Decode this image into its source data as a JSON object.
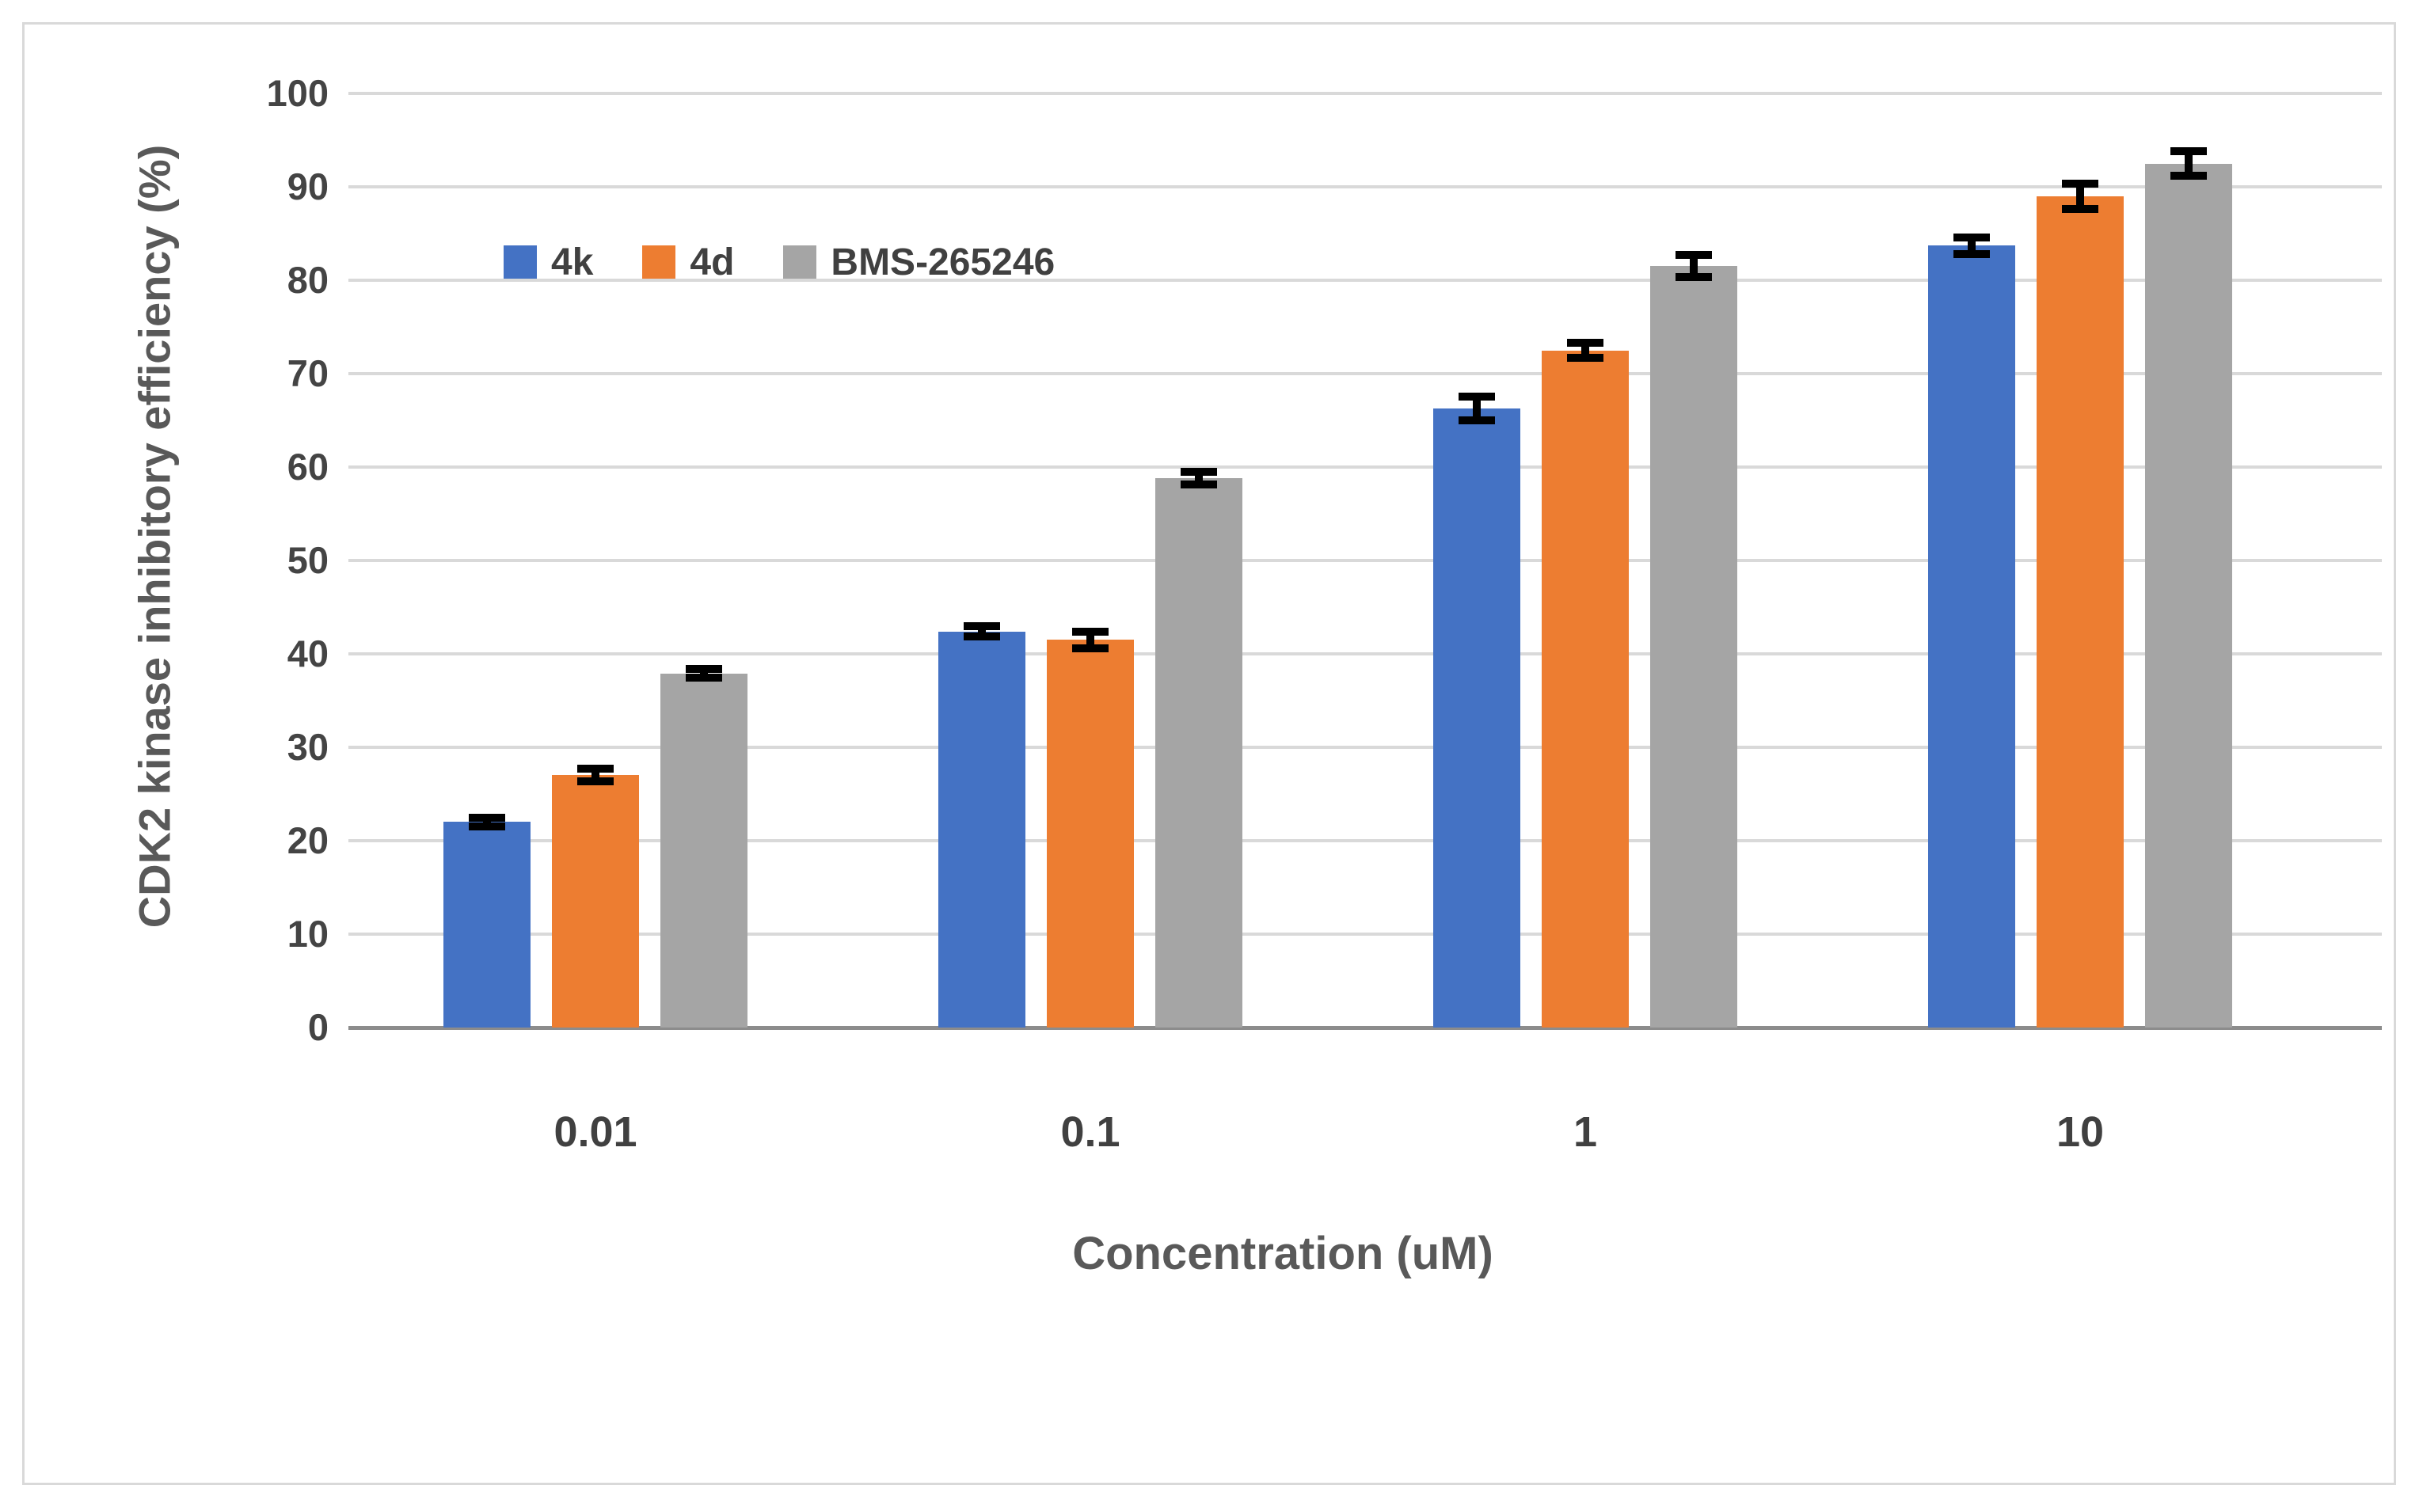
{
  "chart_data": {
    "type": "bar",
    "title": "",
    "xlabel": "Concentration (uM)",
    "ylabel": "CDK2 kinase inhibitory efficiency (%)",
    "categories": [
      "0.01",
      "0.1",
      "1",
      "10"
    ],
    "series": [
      {
        "name": "4k",
        "color": "#4472C4",
        "values": [
          22.0,
          42.4,
          66.3,
          83.7
        ],
        "errors": [
          0.9,
          1.0,
          1.7,
          1.3
        ]
      },
      {
        "name": "4d",
        "color": "#ED7D31",
        "values": [
          27.0,
          41.5,
          72.5,
          89.0
        ],
        "errors": [
          1.1,
          1.3,
          1.2,
          1.8
        ]
      },
      {
        "name": "BMS-265246",
        "color": "#A5A5A5",
        "values": [
          37.9,
          58.8,
          81.5,
          92.5
        ],
        "errors": [
          0.9,
          1.1,
          1.6,
          1.7
        ]
      }
    ],
    "ylim": [
      0,
      100
    ],
    "ytick_step": 10,
    "yticks": [
      "0",
      "10",
      "20",
      "30",
      "40",
      "50",
      "60",
      "70",
      "80",
      "90",
      "100"
    ],
    "grid": true,
    "legend_position": "inside-top-left",
    "gridline_color": "#D9D9D9",
    "axis_line_color": "#8C8C8C",
    "error_bar_color": "#000000",
    "frame_border_color": "#D9D9D9",
    "text_color": "#404040"
  }
}
